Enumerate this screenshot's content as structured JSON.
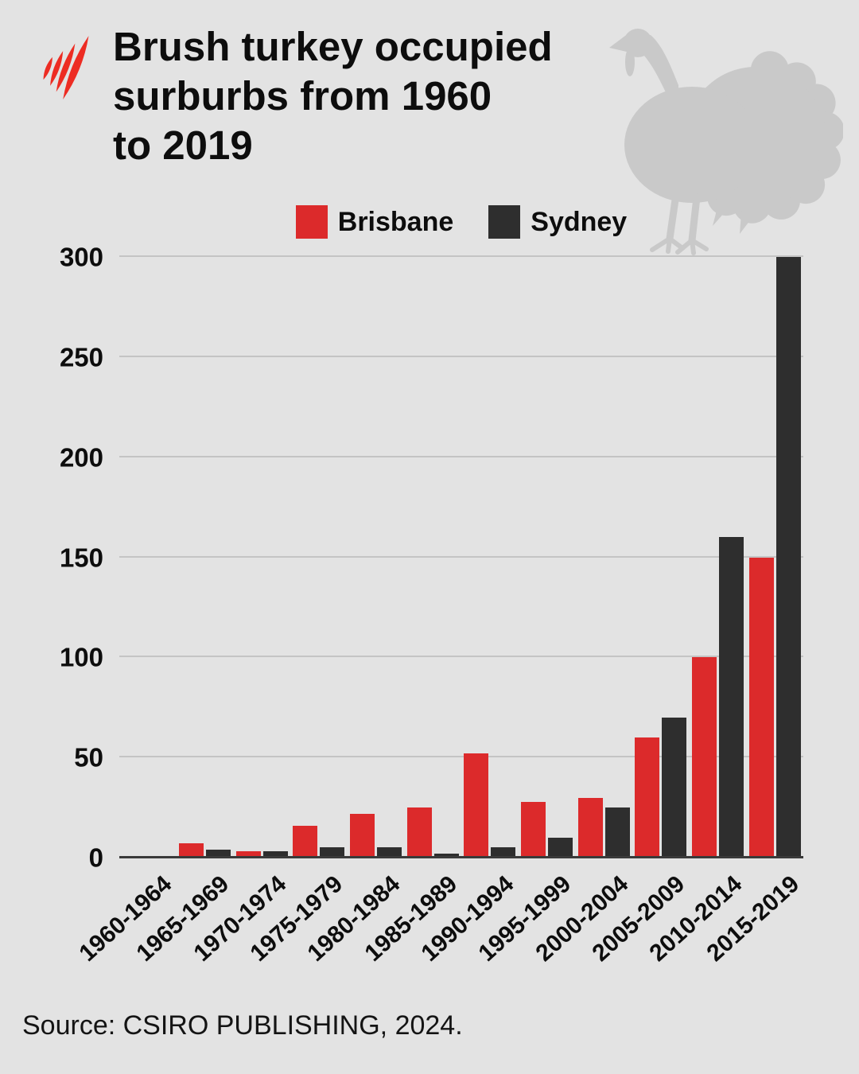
{
  "header": {
    "title_lines": [
      "Brush turkey occupied",
      "surburbs from 1960",
      "to 2019"
    ],
    "brand": "sbs-logo",
    "brand_color": "#ed2c23"
  },
  "source": "Source: CSIRO PUBLISHING, 2024.",
  "colors": {
    "background": "#e3e3e3",
    "brisbane_red": "#dc2a2b",
    "sydney_dark": "#2e2e2e",
    "gridline": "#c4c4c4",
    "axis": "#3a3a3a",
    "turkey_silhouette": "#c9c9c9"
  },
  "chart_data": {
    "type": "bar",
    "title": "Brush turkey occupied surburbs from 1960 to 2019",
    "categories": [
      "1960-1964",
      "1965-1969",
      "1970-1974",
      "1975-1979",
      "1980-1984",
      "1985-1989",
      "1990-1994",
      "1995-1999",
      "2000-2004",
      "2005-2009",
      "2010-2014",
      "2015-2019"
    ],
    "series": [
      {
        "name": "Brisbane",
        "color": "#dc2a2b",
        "values": [
          0,
          7,
          3,
          16,
          22,
          25,
          52,
          28,
          30,
          60,
          100,
          150
        ]
      },
      {
        "name": "Sydney",
        "color": "#2e2e2e",
        "values": [
          0,
          4,
          3,
          5,
          5,
          2,
          5,
          10,
          25,
          70,
          160,
          300
        ]
      }
    ],
    "xlabel": "",
    "ylabel": "",
    "ylim": [
      0,
      300
    ],
    "yticks": [
      0,
      50,
      100,
      150,
      200,
      250,
      300
    ],
    "grid": true,
    "legend_position": "top-center",
    "x_tick_rotation": -42
  }
}
